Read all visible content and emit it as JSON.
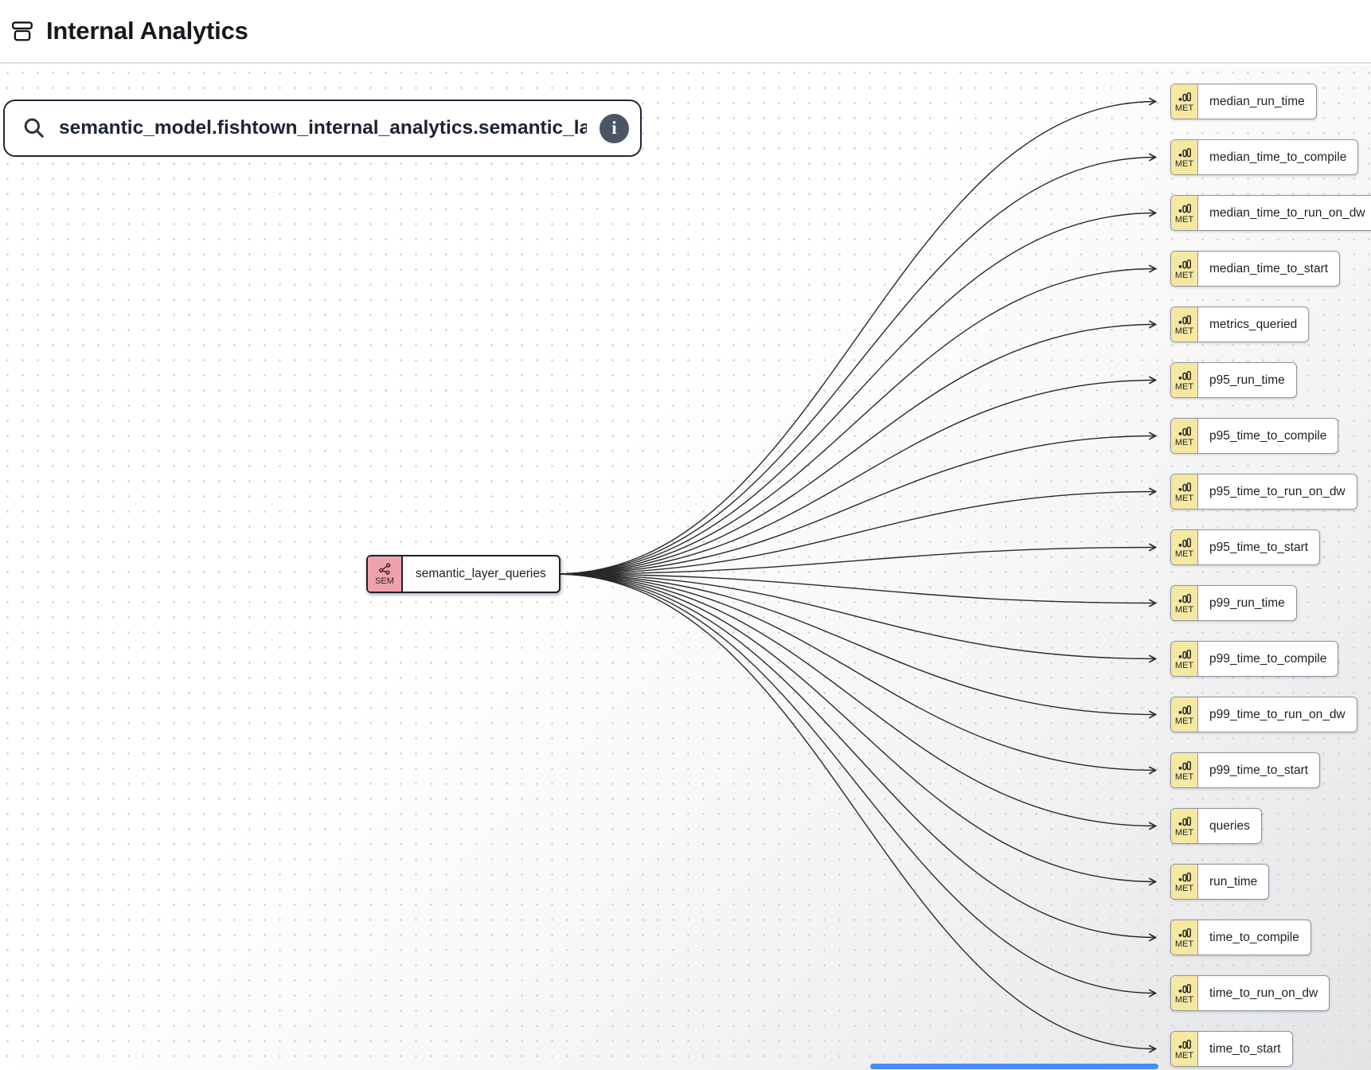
{
  "header": {
    "title": "Internal Analytics"
  },
  "search": {
    "value": "semantic_model.fishtown_internal_analytics.semantic_la"
  },
  "graph": {
    "source": {
      "badge": "SEM",
      "label": "semantic_layer_queries"
    },
    "met_badge_label": "MET",
    "targets": [
      "median_run_time",
      "median_time_to_compile",
      "median_time_to_run_on_dw",
      "median_time_to_start",
      "metrics_queried",
      "p95_run_time",
      "p95_time_to_compile",
      "p95_time_to_run_on_dw",
      "p95_time_to_start",
      "p99_run_time",
      "p99_time_to_compile",
      "p99_time_to_run_on_dw",
      "p99_time_to_start",
      "queries",
      "run_time",
      "time_to_compile",
      "time_to_run_on_dw",
      "time_to_start"
    ],
    "colors": {
      "met_badge_bg": "#F6E7A1",
      "sem_badge_bg": "#F1A1AB",
      "node_border": "#8D95A1",
      "selected_border": "#1A2330",
      "edge": "#292929",
      "scrollbar": "#4A8BF8"
    }
  }
}
